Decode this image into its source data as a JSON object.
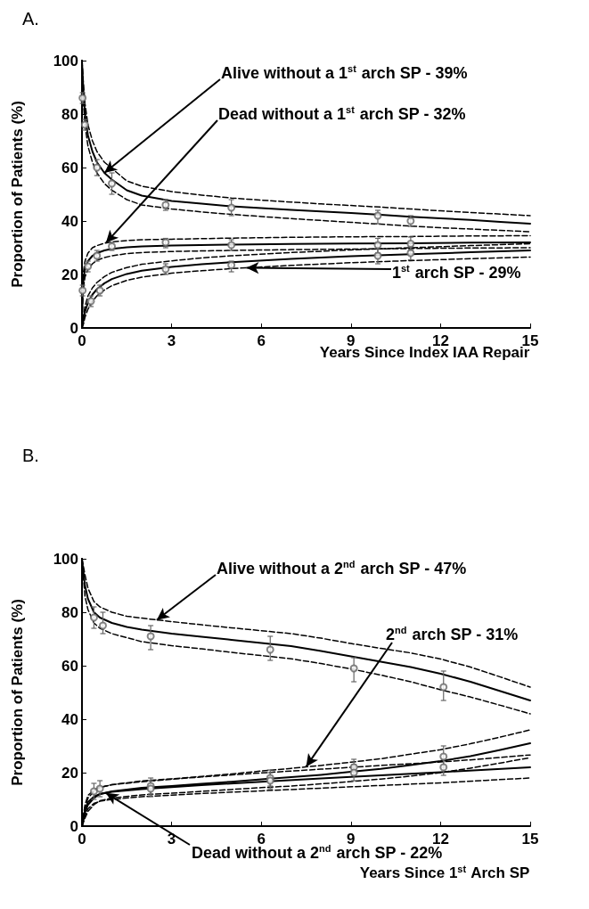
{
  "chart_data": [
    {
      "type": "line",
      "title": "A.",
      "xlabel": "Years Since Index IAA Repair",
      "ylabel": "Proportion of Patients (%)",
      "xlim": [
        0,
        15
      ],
      "xticks": [
        0,
        3,
        6,
        9,
        12,
        15
      ],
      "ylim": [
        0,
        100
      ],
      "yticks": [
        0,
        20,
        40,
        60,
        80,
        100
      ],
      "grid": false,
      "annotations": [
        {
          "text": "Alive without a 1$^{st}$ arch SP - 39%",
          "x": 0.75,
          "y": 58
        },
        {
          "text": "Dead without a 1$^{st}$ arch SP - 32%",
          "x": 0.8,
          "y": 31.8
        },
        {
          "text": "1$^{st}$ arch SP - 29%",
          "x": 5.5,
          "y": 22.5
        }
      ],
      "series": [
        {
          "type": "line",
          "color": "#000000",
          "line_style": "solid",
          "x": [
            0,
            0.05,
            0.1,
            0.2,
            0.35,
            0.5,
            0.75,
            1,
            1.5,
            2,
            3,
            4,
            5,
            6,
            7,
            8,
            9,
            10,
            11,
            12,
            13,
            14,
            15
          ],
          "values": [
            100,
            88,
            80,
            72,
            66,
            62,
            58,
            55.5,
            51.5,
            49.5,
            47.5,
            46.5,
            45.5,
            44.8,
            44.2,
            43.6,
            43,
            42.3,
            41.6,
            41,
            40.4,
            39.7,
            39
          ]
        },
        {
          "type": "line",
          "color": "#000000",
          "line_style": "dashed",
          "x": [
            0,
            0.05,
            0.1,
            0.2,
            0.35,
            0.5,
            0.75,
            1,
            1.5,
            2,
            3,
            4,
            5,
            6,
            7,
            8,
            9,
            10,
            11,
            12,
            13,
            14,
            15
          ],
          "values": [
            100,
            84,
            76,
            68,
            62,
            58,
            54,
            51.5,
            48,
            46,
            44.5,
            43.4,
            42.5,
            41.7,
            40.9,
            40.2,
            39.5,
            38.8,
            38.1,
            37.5,
            37,
            36.5,
            36
          ]
        },
        {
          "type": "line",
          "color": "#000000",
          "line_style": "dashed",
          "x": [
            0,
            0.05,
            0.1,
            0.2,
            0.35,
            0.5,
            0.75,
            1.5,
            2,
            3,
            4,
            5,
            6,
            7,
            8,
            9,
            10,
            11,
            12,
            13,
            14,
            15
          ],
          "values": [
            100,
            91,
            84,
            76,
            70,
            66,
            62,
            55,
            53,
            51,
            49.7,
            48.6,
            47.8,
            47.1,
            46.4,
            45.8,
            45.2,
            44.5,
            43.8,
            43.2,
            42.6,
            42
          ]
        },
        {
          "type": "line",
          "color": "#000000",
          "line_style": "solid",
          "x": [
            0,
            0.02,
            0.05,
            0.1,
            0.2,
            0.35,
            0.5,
            0.75,
            1,
            1.5,
            2,
            3,
            5,
            7,
            9,
            11,
            13,
            15
          ],
          "values": [
            0,
            12,
            18,
            22,
            25,
            27,
            28,
            29,
            29.6,
            30.2,
            30.5,
            30.8,
            31.2,
            31.4,
            31.6,
            31.7,
            31.9,
            32
          ]
        },
        {
          "type": "line",
          "color": "#000000",
          "line_style": "dashed",
          "x": [
            0,
            0.02,
            0.05,
            0.1,
            0.2,
            0.35,
            0.5,
            0.75,
            1,
            1.5,
            2,
            3,
            5,
            7,
            9,
            11,
            13,
            15
          ],
          "values": [
            0,
            9,
            15,
            19,
            22,
            24,
            25.3,
            26.3,
            27,
            27.8,
            28.2,
            28.6,
            29,
            29.3,
            29.5,
            29.7,
            29.9,
            30
          ]
        },
        {
          "type": "line",
          "color": "#000000",
          "line_style": "dashed",
          "x": [
            0,
            0.02,
            0.05,
            0.1,
            0.2,
            0.35,
            0.5,
            0.75,
            1,
            1.5,
            2,
            3,
            5,
            7,
            9,
            11,
            13,
            15
          ],
          "values": [
            0,
            15,
            21,
            25,
            28,
            30,
            30.8,
            31.7,
            32.2,
            32.7,
            33,
            33.2,
            33.6,
            33.9,
            34.1,
            34.2,
            34.4,
            34.5
          ]
        },
        {
          "type": "line",
          "color": "#000000",
          "line_style": "solid",
          "x": [
            0,
            0.05,
            0.1,
            0.2,
            0.35,
            0.5,
            0.75,
            1,
            1.5,
            2,
            3,
            4,
            5,
            7,
            9,
            11,
            13,
            15
          ],
          "values": [
            0,
            3,
            6,
            9.5,
            12.5,
            14.5,
            16.7,
            18.3,
            20.2,
            21.4,
            22.8,
            23.8,
            24.6,
            25.8,
            26.8,
            27.6,
            28.3,
            29
          ]
        },
        {
          "type": "line",
          "color": "#000000",
          "line_style": "dashed",
          "x": [
            0,
            0.05,
            0.1,
            0.2,
            0.35,
            0.5,
            0.75,
            1,
            1.5,
            2,
            3,
            4,
            5,
            7,
            9,
            11,
            13,
            15
          ],
          "values": [
            0,
            1.5,
            4,
            7,
            10,
            12,
            14.2,
            15.8,
            17.8,
            19,
            20.5,
            21.4,
            22.2,
            23.4,
            24.4,
            25.2,
            25.9,
            26.5
          ]
        },
        {
          "type": "line",
          "color": "#000000",
          "line_style": "dashed",
          "x": [
            0,
            0.05,
            0.1,
            0.2,
            0.35,
            0.5,
            0.75,
            1,
            1.5,
            2,
            3,
            4,
            5,
            7,
            9,
            11,
            13,
            15
          ],
          "values": [
            0,
            4.5,
            8,
            12,
            15,
            17,
            19.2,
            20.8,
            22.6,
            23.8,
            25.1,
            26.2,
            27,
            28.2,
            29.2,
            30,
            30.8,
            31.5
          ]
        },
        {
          "type": "scatter",
          "color": "#666666",
          "marker": "circle",
          "x": [
            0.02,
            0.1,
            0.5,
            1,
            2.8,
            5,
            9.9,
            11
          ],
          "values": [
            86,
            76,
            60,
            54,
            46,
            45,
            42,
            40
          ],
          "errors": [
            [
              84,
              88
            ],
            [
              74,
              78
            ],
            [
              57,
              63
            ],
            [
              50,
              58
            ],
            [
              44,
              48
            ],
            [
              42,
              48
            ],
            [
              39,
              44
            ],
            [
              38,
              42
            ]
          ]
        },
        {
          "type": "scatter",
          "color": "#666666",
          "marker": "circle",
          "x": [
            0.02,
            0.2,
            0.5,
            1,
            2.8,
            5,
            9.9,
            11
          ],
          "values": [
            14,
            23,
            27,
            30.5,
            32,
            31,
            31,
            31.5
          ],
          "errors": [
            [
              12,
              16
            ],
            [
              21,
              25
            ],
            [
              25,
              29
            ],
            [
              29,
              32
            ],
            [
              30,
              33.5
            ],
            [
              29,
              33
            ],
            [
              28,
              33.5
            ],
            [
              29,
              34
            ]
          ]
        },
        {
          "type": "scatter",
          "color": "#666666",
          "marker": "circle",
          "x": [
            0.3,
            0.6,
            2.8,
            5,
            9.9,
            11
          ],
          "values": [
            10,
            14,
            22,
            23.5,
            27,
            28
          ],
          "errors": [
            [
              8,
              12
            ],
            [
              12,
              16
            ],
            [
              20,
              24
            ],
            [
              21,
              25
            ],
            [
              24,
              30
            ],
            [
              25.5,
              30.5
            ]
          ]
        }
      ]
    },
    {
      "type": "line",
      "title": "B.",
      "xlabel": "Years Since 1$^{st}$ Arch SP",
      "ylabel": "Proportion of Patients (%)",
      "xlim": [
        0,
        15
      ],
      "xticks": [
        0,
        3,
        6,
        9,
        12,
        15
      ],
      "ylim": [
        0,
        100
      ],
      "yticks": [
        0,
        20,
        40,
        60,
        80,
        100
      ],
      "grid": false,
      "annotations": [
        {
          "text": "Alive without a 2$^{nd}$ arch SP - 47%",
          "x": 2.5,
          "y": 77.1
        },
        {
          "text": "2$^{nd}$ arch SP - 31%",
          "x": 7.5,
          "y": 22.2
        },
        {
          "text": "Dead without a 2$^{nd}$ arch SP - 22%",
          "x": 0.8,
          "y": 12.4
        }
      ],
      "series": [
        {
          "type": "line",
          "color": "#000000",
          "line_style": "solid",
          "x": [
            0,
            0.1,
            0.2,
            0.4,
            0.6,
            1,
            1.5,
            2,
            3,
            4,
            5,
            6,
            7,
            8,
            9,
            10,
            11,
            12,
            13,
            14,
            15
          ],
          "values": [
            100,
            90,
            85,
            80,
            78,
            76,
            74.5,
            73.5,
            72,
            70.8,
            69.7,
            68.5,
            67.3,
            65.5,
            63.5,
            61.5,
            59.5,
            57,
            54,
            50.5,
            47
          ]
        },
        {
          "type": "line",
          "color": "#000000",
          "line_style": "dashed",
          "x": [
            0,
            0.1,
            0.2,
            0.4,
            0.6,
            1,
            1.5,
            2,
            3,
            4,
            5,
            6,
            7,
            8,
            9,
            10,
            11,
            12,
            13,
            14,
            15
          ],
          "values": [
            100,
            86,
            81,
            76,
            74,
            72,
            70.5,
            69,
            67.5,
            66.3,
            65,
            63.8,
            62.6,
            60.8,
            58.8,
            56.5,
            54,
            51,
            48.3,
            45.2,
            42
          ]
        },
        {
          "type": "line",
          "color": "#000000",
          "line_style": "dashed",
          "x": [
            0,
            0.1,
            0.2,
            0.4,
            0.6,
            1,
            1.5,
            2,
            3,
            4,
            5,
            6,
            7,
            8,
            9,
            10,
            11,
            12,
            13,
            14,
            15
          ],
          "values": [
            100,
            94,
            89,
            84,
            82,
            80,
            78.5,
            77.8,
            76.5,
            75.3,
            74.2,
            73.1,
            72,
            70.3,
            68.3,
            66.5,
            64.8,
            62.5,
            59.5,
            55.8,
            52
          ]
        },
        {
          "type": "line",
          "color": "#000000",
          "line_style": "solid",
          "x": [
            0,
            0.1,
            0.2,
            0.4,
            0.6,
            1,
            2,
            3,
            4,
            5,
            6,
            7,
            8,
            9,
            10,
            11,
            12,
            13,
            14,
            15
          ],
          "values": [
            0,
            5,
            8,
            10.5,
            12,
            13,
            14.3,
            15,
            15.8,
            16.6,
            17.5,
            18.3,
            19.2,
            20.3,
            21.4,
            22.8,
            24.3,
            26.2,
            28.5,
            31
          ]
        },
        {
          "type": "line",
          "color": "#000000",
          "line_style": "dashed",
          "x": [
            0,
            0.1,
            0.2,
            0.4,
            0.6,
            1,
            2,
            3,
            4,
            5,
            6,
            7,
            8,
            9,
            10,
            11,
            12,
            13,
            14,
            15
          ],
          "values": [
            0,
            3,
            5.5,
            8,
            9.5,
            10.5,
            11.7,
            12.3,
            13,
            13.7,
            14.4,
            15,
            15.8,
            16.7,
            17.6,
            18.7,
            20,
            21.7,
            23.6,
            25.6
          ]
        },
        {
          "type": "line",
          "color": "#000000",
          "line_style": "dashed",
          "x": [
            0,
            0.1,
            0.2,
            0.4,
            0.6,
            1,
            2,
            3,
            4,
            5,
            6,
            7,
            8,
            9,
            10,
            11,
            12,
            13,
            14,
            15
          ],
          "values": [
            0,
            7,
            10.5,
            13,
            14.5,
            15.5,
            16.9,
            17.7,
            18.6,
            19.5,
            20.6,
            21.6,
            22.7,
            23.9,
            25.2,
            26.9,
            28.6,
            30.8,
            33.3,
            36
          ]
        },
        {
          "type": "line",
          "color": "#000000",
          "line_style": "solid",
          "x": [
            0,
            0.1,
            0.2,
            0.4,
            0.6,
            1,
            2,
            3,
            4,
            6,
            8,
            10,
            12,
            13.5,
            15
          ],
          "values": [
            0,
            6,
            9,
            11,
            12,
            12.8,
            13.8,
            14.6,
            15.3,
            16.6,
            17.8,
            19,
            20.2,
            21.1,
            22
          ]
        },
        {
          "type": "line",
          "color": "#000000",
          "line_style": "dashed",
          "x": [
            0,
            0.1,
            0.2,
            0.4,
            0.6,
            1,
            2,
            3,
            4,
            6,
            8,
            10,
            12,
            13.5,
            15
          ],
          "values": [
            0,
            4,
            6.5,
            8.5,
            9.3,
            10,
            11,
            11.6,
            12.2,
            13.2,
            14.2,
            15.2,
            16.2,
            17.1,
            18
          ]
        },
        {
          "type": "line",
          "color": "#000000",
          "line_style": "dashed",
          "x": [
            0,
            0.1,
            0.2,
            0.4,
            0.6,
            1,
            2,
            3,
            4,
            6,
            8,
            10,
            12,
            13.5,
            15
          ],
          "values": [
            0,
            8,
            11.5,
            13.5,
            14.5,
            15.5,
            16.6,
            17.5,
            18.4,
            19.9,
            21.3,
            22.7,
            24,
            25.2,
            26.6
          ]
        },
        {
          "type": "scatter",
          "color": "#666666",
          "marker": "circle",
          "x": [
            0.4,
            0.7,
            2.3,
            6.3,
            9.1,
            12.1
          ],
          "values": [
            78,
            75,
            71,
            66,
            59,
            52
          ],
          "errors": [
            [
              74,
              82
            ],
            [
              72,
              80
            ],
            [
              66,
              75
            ],
            [
              62,
              71
            ],
            [
              54,
              63
            ],
            [
              47,
              58
            ]
          ]
        },
        {
          "type": "scatter",
          "color": "#666666",
          "marker": "circle",
          "x": [
            0.4,
            2.3,
            6.3,
            9.1,
            12.1
          ],
          "values": [
            13,
            15,
            18,
            22,
            26
          ],
          "errors": [
            [
              10,
              16
            ],
            [
              12,
              18
            ],
            [
              15,
              21
            ],
            [
              19,
              25
            ],
            [
              22,
              30
            ]
          ]
        },
        {
          "type": "scatter",
          "color": "#666666",
          "marker": "circle",
          "x": [
            0.6,
            2.3,
            6.3,
            9.1,
            12.1
          ],
          "values": [
            14,
            14,
            17,
            20,
            22
          ],
          "errors": [
            [
              11,
              17
            ],
            [
              11,
              17
            ],
            [
              14,
              20
            ],
            [
              17,
              23
            ],
            [
              19,
              25
            ]
          ]
        }
      ]
    }
  ]
}
